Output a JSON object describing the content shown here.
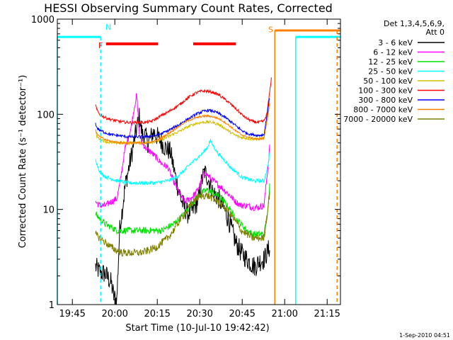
{
  "chart_data": {
    "type": "line",
    "title": "HESSI Observing Summary Count Rates, Corrected",
    "xlabel": "Start Time (10-Jul-10 19:42:42)",
    "ylabel": "Corrected Count Rate (s⁻¹ detector⁻¹)",
    "footer_date": "1-Sep-2010 04:51",
    "yscale": "log",
    "ylim": [
      1,
      1000
    ],
    "xlim_minutes": [
      -3,
      97
    ],
    "x_ticks": [
      {
        "label": "19:45",
        "min": 2.3
      },
      {
        "label": "20:00",
        "min": 17.3
      },
      {
        "label": "20:15",
        "min": 32.3
      },
      {
        "label": "20:30",
        "min": 47.3
      },
      {
        "label": "20:45",
        "min": 62.3
      },
      {
        "label": "21:00",
        "min": 77.3
      },
      {
        "label": "21:15",
        "min": 92.3
      }
    ],
    "y_ticks": [
      {
        "label": "1",
        "v": 1
      },
      {
        "label": "10",
        "v": 10
      },
      {
        "label": "100",
        "v": 100
      },
      {
        "label": "1000",
        "v": 1000
      }
    ],
    "legend": {
      "header": [
        "Det 1,3,4,5,6,9,",
        "Att 0"
      ],
      "entries": [
        {
          "label": "3 - 6 keV",
          "color": "#000000"
        },
        {
          "label": "6 - 12 keV",
          "color": "#ff00ff"
        },
        {
          "label": "12 - 25 keV",
          "color": "#00e000"
        },
        {
          "label": "25 - 50 keV",
          "color": "#00ffff"
        },
        {
          "label": "50 - 100 keV",
          "color": "#d2c000"
        },
        {
          "label": "100 - 300 keV",
          "color": "#ff0000"
        },
        {
          "label": "300 - 800 keV",
          "color": "#0000ff"
        },
        {
          "label": "800 - 7000 keV",
          "color": "#ff8000"
        },
        {
          "label": "7000 - 20000 keV",
          "color": "#808000"
        }
      ]
    },
    "series": [
      {
        "name": "3 - 6 keV",
        "color": "#000000",
        "noise": 0.22,
        "x": [
          10.5,
          12,
          14,
          16,
          17,
          18,
          19,
          21,
          23,
          25,
          26,
          27,
          28,
          29,
          31,
          33,
          35,
          37,
          39,
          41,
          43,
          45,
          47,
          48,
          49,
          50,
          52,
          54,
          56,
          58,
          60,
          62,
          64,
          66,
          67,
          68,
          70,
          72
        ],
        "y": [
          2.5,
          2.2,
          2.1,
          1.7,
          1.2,
          1.1,
          6,
          18,
          35,
          70,
          95,
          60,
          60,
          50,
          65,
          55,
          45,
          40,
          20,
          12,
          9,
          10,
          13,
          20,
          25,
          22,
          15,
          13,
          10,
          7,
          4.5,
          3.5,
          3,
          2.6,
          2.5,
          2.8,
          3,
          4
        ]
      },
      {
        "name": "6 - 12 keV",
        "color": "#ff00ff",
        "noise": 0.07,
        "x": [
          10.5,
          12,
          14,
          16,
          18,
          19,
          21,
          23,
          24,
          25,
          26,
          27,
          28,
          30,
          32,
          34,
          36,
          38,
          40,
          42,
          44,
          46,
          48,
          49,
          50,
          52,
          54,
          56,
          58,
          60,
          62,
          64,
          66,
          68,
          70,
          71.5,
          72
        ],
        "y": [
          12,
          11,
          11,
          12,
          13,
          18,
          45,
          70,
          110,
          160,
          60,
          50,
          45,
          40,
          35,
          30,
          28,
          20,
          15,
          12,
          13,
          15,
          20,
          25,
          23,
          20,
          18,
          16,
          14,
          12,
          11,
          11,
          10.5,
          10.5,
          11,
          30,
          45
        ]
      },
      {
        "name": "12 - 25 keV",
        "color": "#00e000",
        "noise": 0.07,
        "x": [
          10.5,
          12,
          14,
          16,
          18,
          20,
          22,
          24,
          26,
          28,
          30,
          32,
          34,
          36,
          38,
          40,
          42,
          44,
          46,
          48,
          50,
          52,
          54,
          56,
          58,
          60,
          62,
          64,
          66,
          68,
          70,
          71.5,
          72
        ],
        "y": [
          9,
          8,
          7,
          6.5,
          6,
          6,
          6,
          6,
          6,
          6,
          6,
          6,
          6,
          6.5,
          7,
          8,
          9,
          11,
          13,
          15,
          16,
          15,
          14,
          12,
          10,
          8,
          7,
          6,
          5.5,
          5.5,
          5.5,
          10,
          18
        ]
      },
      {
        "name": "25 - 50 keV",
        "color": "#00ffff",
        "noise": 0.04,
        "x": [
          10.5,
          11,
          12,
          14,
          16,
          18,
          20,
          22,
          24,
          26,
          28,
          30,
          32,
          34,
          36,
          38,
          40,
          42,
          44,
          46,
          48,
          50,
          51,
          52,
          53,
          54,
          56,
          58,
          60,
          62,
          64,
          66,
          68,
          70,
          71.5,
          72
        ],
        "y": [
          35,
          30,
          25,
          22,
          21,
          20,
          19.5,
          19,
          19,
          19,
          19,
          19,
          19,
          19.5,
          20,
          21,
          23,
          26,
          30,
          34,
          38,
          45,
          53,
          47,
          42,
          38,
          33,
          28,
          25,
          22,
          21,
          20,
          20,
          20,
          30,
          40
        ]
      },
      {
        "name": "50 - 100 keV",
        "color": "#d2c000",
        "noise": 0.03,
        "x": [
          10.5,
          11,
          12,
          14,
          16,
          18,
          20,
          22,
          24,
          26,
          28,
          30,
          32,
          34,
          36,
          38,
          40,
          42,
          44,
          46,
          48,
          50,
          52,
          54,
          56,
          58,
          60,
          62,
          64,
          66,
          68,
          70,
          72
        ],
        "y": [
          65,
          58,
          55,
          52,
          50,
          50,
          50,
          50,
          50,
          50,
          50,
          51,
          52,
          54,
          58,
          62,
          66,
          71,
          76,
          80,
          82,
          83,
          82,
          78,
          72,
          65,
          60,
          57,
          56,
          55,
          55,
          56,
          120
        ]
      },
      {
        "name": "100 - 300 keV",
        "color": "#ff0000",
        "noise": 0.03,
        "x": [
          10.5,
          11,
          12,
          14,
          16,
          18,
          20,
          22,
          24,
          26,
          28,
          30,
          32,
          34,
          36,
          38,
          40,
          42,
          44,
          46,
          48,
          50,
          52,
          54,
          56,
          58,
          60,
          62,
          64,
          66,
          68,
          70,
          71,
          72,
          72.6
        ],
        "y": [
          125,
          110,
          100,
          92,
          88,
          85,
          83,
          82,
          82,
          82,
          82,
          84,
          90,
          98,
          105,
          115,
          125,
          140,
          155,
          168,
          175,
          175,
          170,
          160,
          145,
          130,
          115,
          100,
          90,
          84,
          82,
          85,
          100,
          170,
          240
        ]
      },
      {
        "name": "300 - 800 keV",
        "color": "#0000ff",
        "noise": 0.03,
        "x": [
          10.5,
          11,
          12,
          14,
          16,
          18,
          20,
          22,
          24,
          26,
          28,
          30,
          32,
          34,
          36,
          38,
          40,
          42,
          44,
          46,
          48,
          50,
          52,
          54,
          56,
          58,
          60,
          62,
          64,
          66,
          68,
          70,
          72
        ],
        "y": [
          80,
          72,
          68,
          64,
          61,
          60,
          59,
          58,
          58,
          58,
          58,
          59,
          60,
          63,
          67,
          72,
          78,
          85,
          92,
          100,
          106,
          110,
          108,
          102,
          94,
          85,
          76,
          68,
          63,
          61,
          60,
          61,
          150
        ]
      },
      {
        "name": "800 - 7000 keV",
        "color": "#ff8000",
        "noise": 0.02,
        "x": [
          10.5,
          11,
          12,
          14,
          16,
          18,
          20,
          22,
          24,
          26,
          28,
          30,
          32,
          34,
          36,
          38,
          40,
          42,
          44,
          46,
          48,
          50,
          52,
          54,
          56,
          58,
          60,
          62,
          64,
          66,
          68,
          70,
          72
        ],
        "y": [
          70,
          62,
          58,
          54,
          52,
          51,
          50,
          50,
          50,
          50,
          50,
          51,
          53,
          57,
          62,
          68,
          75,
          82,
          88,
          92,
          95,
          96,
          94,
          90,
          83,
          75,
          67,
          61,
          58,
          56,
          55,
          56,
          130
        ]
      },
      {
        "name": "7000 - 20000 keV",
        "color": "#808000",
        "noise": 0.08,
        "x": [
          10.5,
          12,
          14,
          16,
          18,
          20,
          22,
          24,
          26,
          28,
          30,
          32,
          34,
          36,
          38,
          40,
          42,
          44,
          46,
          48,
          50,
          52,
          54,
          56,
          58,
          60,
          62,
          64,
          66,
          68,
          70,
          72
        ],
        "y": [
          5.5,
          5,
          4.5,
          4,
          3.7,
          3.5,
          3.5,
          3.5,
          3.5,
          3.6,
          3.8,
          4,
          4.5,
          5,
          6,
          7.5,
          9,
          11,
          13,
          14,
          14,
          13,
          12,
          10.5,
          9,
          7.5,
          6,
          5.5,
          5,
          5,
          5,
          15
        ]
      }
    ],
    "flags": {
      "cyan_solid_segments": [
        {
          "x0": -3,
          "x1": 12.3,
          "y": 650
        },
        {
          "x0": 81.2,
          "x1": 97,
          "y": 650
        }
      ],
      "cyan_verticals": [
        {
          "x": -3,
          "style": "solid"
        },
        {
          "x": 12.3,
          "style": "dashed"
        },
        {
          "x": 81.2,
          "style": "solid"
        }
      ],
      "orange_segments": [
        {
          "x0": 73.8,
          "x1": 97,
          "y": 760
        }
      ],
      "orange_verticals": [
        {
          "x": 73.8,
          "style": "solid"
        },
        {
          "x": 95.8,
          "style": "dashed"
        }
      ],
      "red_segments": [
        {
          "x0": 14.2,
          "x1": 32.5,
          "y": 550
        },
        {
          "x0": 45,
          "x1": 60,
          "y": 550
        }
      ],
      "labels": [
        {
          "text": "N",
          "color": "#00ffff",
          "x": 14,
          "y": 830
        },
        {
          "text": "F",
          "color": "#ff0000",
          "x": 11.5,
          "y": 530
        },
        {
          "text": "S",
          "color": "#ff8000",
          "x": 71.5,
          "y": 780
        }
      ]
    }
  }
}
